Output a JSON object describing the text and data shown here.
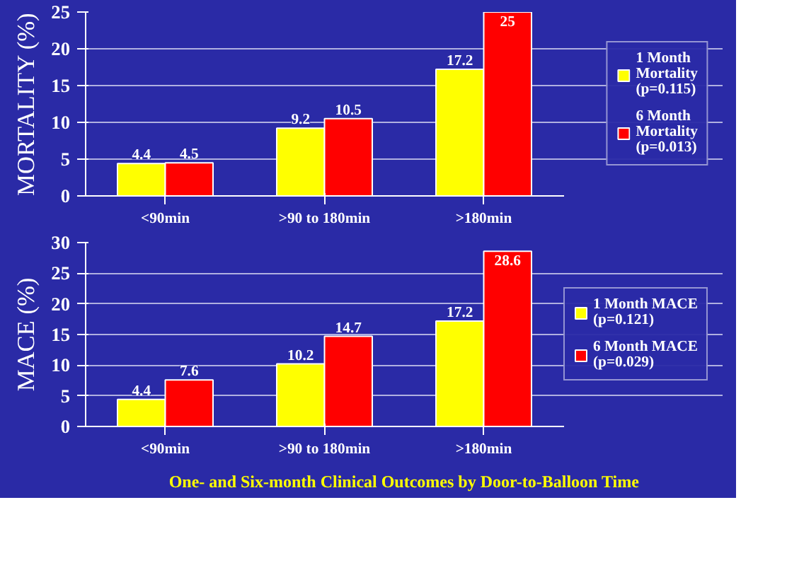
{
  "chart_data": [
    {
      "type": "bar",
      "ylabel": "MORTALITY (%)",
      "categories": [
        "<90min",
        ">90 to 180min",
        ">180min"
      ],
      "series": [
        {
          "name": "1 Month Mortality (p=0.115)",
          "color": "#ffff00",
          "values": [
            4.4,
            9.2,
            17.2
          ]
        },
        {
          "name": "6 Month Mortality (p=0.013)",
          "color": "#ff0000",
          "values": [
            4.5,
            10.5,
            25
          ]
        }
      ],
      "ylim": [
        0,
        25
      ],
      "yticks": [
        0,
        5,
        10,
        15,
        20,
        25
      ],
      "grid": "y",
      "legend": "right",
      "data_labels": true
    },
    {
      "type": "bar",
      "ylabel": "MACE (%)",
      "categories": [
        "<90min",
        ">90 to 180min",
        ">180min"
      ],
      "series": [
        {
          "name": "1 Month MACE (p=0.121)",
          "color": "#ffff00",
          "values": [
            4.4,
            10.2,
            17.2
          ]
        },
        {
          "name": "6 Month MACE (p=0.029)",
          "color": "#ff0000",
          "values": [
            7.6,
            14.7,
            28.6
          ]
        }
      ],
      "ylim": [
        0,
        30
      ],
      "yticks": [
        0,
        5,
        10,
        15,
        20,
        25,
        30
      ],
      "grid": "y",
      "legend": "right",
      "data_labels": true,
      "annotations": [
        "One- and Six-month Clinical Outcomes by Door-to-Balloon Time"
      ]
    }
  ]
}
